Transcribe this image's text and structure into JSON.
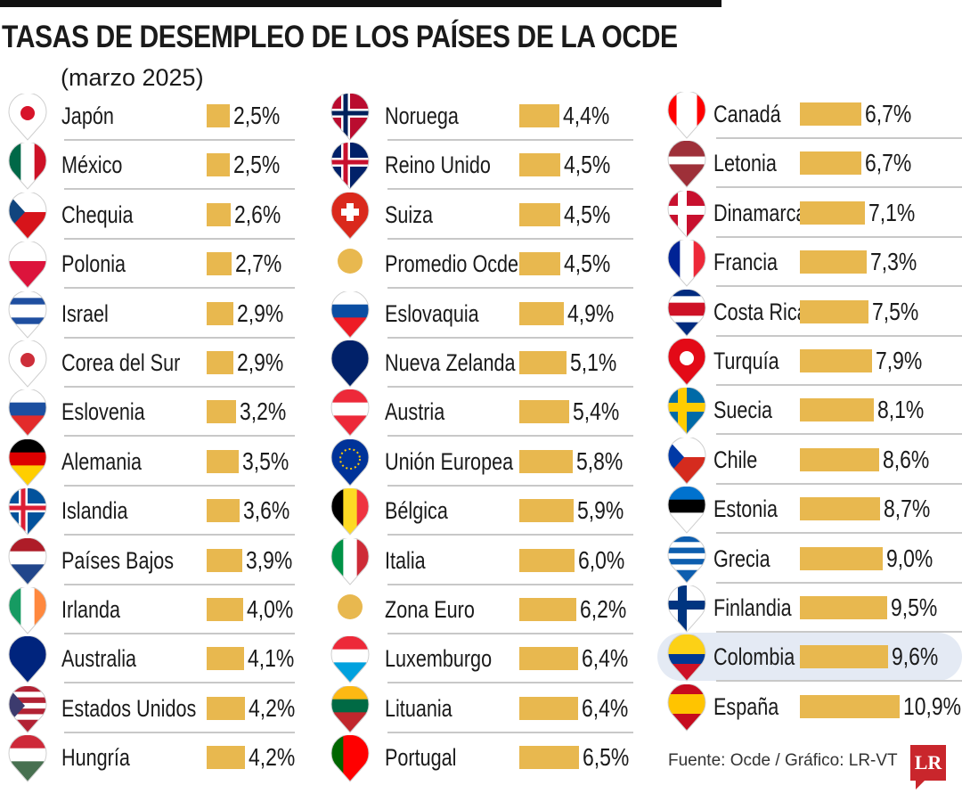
{
  "title": "TASAS DE DESEMPLEO DE LOS PAÍSES DE LA OCDE",
  "subtitle": "(marzo 2025)",
  "source": "Fuente: Ocde / Gráfico: LR-VT",
  "logo": "LR",
  "colors": {
    "bar": "#e8b84f",
    "highlight": "#e4eaf4",
    "logo": "#c9262c"
  },
  "chart_data": {
    "type": "bar",
    "orientation": "horizontal",
    "unit": "%",
    "title": "TASAS DE DESEMPLEO DE LOS PAÍSES DE LA OCDE",
    "subtitle": "(marzo 2025)",
    "highlight": "Colombia",
    "columns": [
      [
        {
          "name": "Japón",
          "value": 2.5,
          "label": "2,5%",
          "flag": {
            "type": "dot",
            "bg": "#ffffff",
            "c": "#d7142a"
          }
        },
        {
          "name": "México",
          "value": 2.5,
          "label": "2,5%",
          "flag": {
            "type": "v",
            "c": [
              "#006847",
              "#ffffff",
              "#ce1126"
            ]
          }
        },
        {
          "name": "Chequia",
          "value": 2.6,
          "label": "2,6%",
          "flag": {
            "type": "h",
            "c": [
              "#ffffff",
              "#d7141a"
            ],
            "tri": "#11457e"
          }
        },
        {
          "name": "Polonia",
          "value": 2.7,
          "label": "2,7%",
          "flag": {
            "type": "h",
            "c": [
              "#ffffff",
              "#dc143c"
            ]
          }
        },
        {
          "name": "Israel",
          "value": 2.9,
          "label": "2,9%",
          "flag": {
            "type": "h",
            "c": [
              "#ffffff",
              "#1f4fa0",
              "#ffffff",
              "#ffffff",
              "#1f4fa0",
              "#ffffff"
            ]
          }
        },
        {
          "name": "Corea del Sur",
          "value": 2.9,
          "label": "2,9%",
          "flag": {
            "type": "dot",
            "bg": "#ffffff",
            "c": "#cd2e3a"
          }
        },
        {
          "name": "Eslovenia",
          "value": 3.2,
          "label": "3,2%",
          "flag": {
            "type": "h",
            "c": [
              "#ffffff",
              "#1c4fa0",
              "#e32b2b"
            ]
          }
        },
        {
          "name": "Alemania",
          "value": 3.5,
          "label": "3,5%",
          "flag": {
            "type": "h",
            "c": [
              "#000000",
              "#dd0000",
              "#ffce00"
            ]
          }
        },
        {
          "name": "Islandia",
          "value": 3.6,
          "label": "3,6%",
          "flag": {
            "type": "cross",
            "bg": "#02529c",
            "c1": "#ffffff",
            "c2": "#dc1e35"
          }
        },
        {
          "name": "Países Bajos",
          "value": 3.9,
          "label": "3,9%",
          "flag": {
            "type": "h",
            "c": [
              "#ae1c28",
              "#ffffff",
              "#21468b"
            ]
          }
        },
        {
          "name": "Irlanda",
          "value": 4.0,
          "label": "4,0%",
          "flag": {
            "type": "v",
            "c": [
              "#169b62",
              "#ffffff",
              "#ff883e"
            ]
          }
        },
        {
          "name": "Australia",
          "value": 4.1,
          "label": "4,1%",
          "flag": {
            "type": "h",
            "c": [
              "#00247d"
            ]
          }
        },
        {
          "name": "Estados Unidos",
          "value": 4.2,
          "label": "4,2%",
          "flag": {
            "type": "h",
            "c": [
              "#b22234",
              "#ffffff",
              "#b22234",
              "#ffffff",
              "#b22234",
              "#ffffff",
              "#b22234"
            ],
            "tri": "#3c3b6e"
          }
        },
        {
          "name": "Hungría",
          "value": 4.2,
          "label": "4,2%",
          "flag": {
            "type": "h",
            "c": [
              "#ce2939",
              "#ffffff",
              "#477050"
            ]
          }
        }
      ],
      [
        {
          "name": "Noruega",
          "value": 4.4,
          "label": "4,4%",
          "flag": {
            "type": "cross",
            "bg": "#ba0c2f",
            "c1": "#ffffff",
            "c2": "#00205b"
          }
        },
        {
          "name": "Reino Unido",
          "value": 4.5,
          "label": "4,5%",
          "flag": {
            "type": "cross",
            "bg": "#012169",
            "c1": "#ffffff",
            "c2": "#c8102e"
          }
        },
        {
          "name": "Suiza",
          "value": 4.5,
          "label": "4,5%",
          "flag": {
            "type": "plus",
            "bg": "#da291c",
            "c1": "#ffffff"
          }
        },
        {
          "name": "Promedio Ocde",
          "value": 4.5,
          "label": "4,5%",
          "flag": {
            "type": "circle",
            "c": "#e8b84f"
          }
        },
        {
          "name": "Eslovaquia",
          "value": 4.9,
          "label": "4,9%",
          "flag": {
            "type": "h",
            "c": [
              "#ffffff",
              "#0b4ea2",
              "#ee1c25"
            ]
          }
        },
        {
          "name": "Nueva Zelanda",
          "value": 5.1,
          "label": "5,1%",
          "flag": {
            "type": "h",
            "c": [
              "#012169"
            ]
          }
        },
        {
          "name": "Austria",
          "value": 5.4,
          "label": "5,4%",
          "flag": {
            "type": "h",
            "c": [
              "#ed2939",
              "#ffffff",
              "#ed2939"
            ]
          }
        },
        {
          "name": "Unión Europea",
          "value": 5.8,
          "label": "5,8%",
          "flag": {
            "type": "dot",
            "bg": "#003399",
            "c": "#003399",
            "ring": "#ffcc00"
          }
        },
        {
          "name": "Bélgica",
          "value": 5.9,
          "label": "5,9%",
          "flag": {
            "type": "v",
            "c": [
              "#000000",
              "#fdda24",
              "#ef3340"
            ]
          }
        },
        {
          "name": "Italia",
          "value": 6.0,
          "label": "6,0%",
          "flag": {
            "type": "v",
            "c": [
              "#009246",
              "#ffffff",
              "#ce2b37"
            ]
          }
        },
        {
          "name": "Zona Euro",
          "value": 6.2,
          "label": "6,2%",
          "flag": {
            "type": "circle",
            "c": "#e8b84f"
          }
        },
        {
          "name": "Luxemburgo",
          "value": 6.4,
          "label": "6,4%",
          "flag": {
            "type": "h",
            "c": [
              "#ed2939",
              "#ffffff",
              "#00a1de"
            ]
          }
        },
        {
          "name": "Lituania",
          "value": 6.4,
          "label": "6,4%",
          "flag": {
            "type": "h",
            "c": [
              "#fdb913",
              "#006a44",
              "#c1272d"
            ]
          }
        },
        {
          "name": "Portugal",
          "value": 6.5,
          "label": "6,5%",
          "flag": {
            "type": "v",
            "c": [
              "#006600",
              "#ff0000",
              "#ff0000"
            ]
          }
        }
      ],
      [
        {
          "name": "Canadá",
          "value": 6.7,
          "label": "6,7%",
          "flag": {
            "type": "v",
            "c": [
              "#ff0000",
              "#ffffff",
              "#ffffff",
              "#ff0000"
            ]
          }
        },
        {
          "name": "Letonia",
          "value": 6.7,
          "label": "6,7%",
          "flag": {
            "type": "h",
            "c": [
              "#9e3039",
              "#9e3039",
              "#ffffff",
              "#9e3039",
              "#9e3039"
            ]
          }
        },
        {
          "name": "Dinamarca",
          "value": 7.1,
          "label": "7,1%",
          "flag": {
            "type": "cross",
            "bg": "#c8102e",
            "c1": "#ffffff",
            "c2": "#ffffff"
          }
        },
        {
          "name": "Francia",
          "value": 7.3,
          "label": "7,3%",
          "flag": {
            "type": "v",
            "c": [
              "#002395",
              "#ffffff",
              "#ed2939"
            ]
          }
        },
        {
          "name": "Costa Rica",
          "value": 7.5,
          "label": "7,5%",
          "flag": {
            "type": "h",
            "c": [
              "#002b7f",
              "#ffffff",
              "#ce1126",
              "#ce1126",
              "#ffffff",
              "#002b7f"
            ]
          }
        },
        {
          "name": "Turquía",
          "value": 7.9,
          "label": "7,9%",
          "flag": {
            "type": "dot",
            "bg": "#e30a17",
            "c": "#ffffff"
          }
        },
        {
          "name": "Suecia",
          "value": 8.1,
          "label": "8,1%",
          "flag": {
            "type": "cross",
            "bg": "#006aa7",
            "c1": "#fecc00",
            "c2": "#fecc00"
          }
        },
        {
          "name": "Chile",
          "value": 8.6,
          "label": "8,6%",
          "flag": {
            "type": "h",
            "c": [
              "#ffffff",
              "#d52b1e"
            ],
            "tri": "#0039a6"
          }
        },
        {
          "name": "Estonia",
          "value": 8.7,
          "label": "8,7%",
          "flag": {
            "type": "h",
            "c": [
              "#0072ce",
              "#000000",
              "#ffffff"
            ]
          }
        },
        {
          "name": "Grecia",
          "value": 9.0,
          "label": "9,0%",
          "flag": {
            "type": "h",
            "c": [
              "#0d5eaf",
              "#ffffff",
              "#0d5eaf",
              "#ffffff",
              "#0d5eaf",
              "#ffffff",
              "#0d5eaf"
            ]
          }
        },
        {
          "name": "Finlandia",
          "value": 9.5,
          "label": "9,5%",
          "flag": {
            "type": "cross",
            "bg": "#ffffff",
            "c1": "#003580",
            "c2": "#003580"
          }
        },
        {
          "name": "Colombia",
          "value": 9.6,
          "label": "9,6%",
          "flag": {
            "type": "h",
            "c": [
              "#fcd116",
              "#fcd116",
              "#003893",
              "#ce1126"
            ]
          }
        },
        {
          "name": "España",
          "value": 10.9,
          "label": "10,9%",
          "flag": {
            "type": "h",
            "c": [
              "#c60b1e",
              "#ffc400",
              "#ffc400",
              "#c60b1e"
            ]
          }
        }
      ]
    ]
  }
}
